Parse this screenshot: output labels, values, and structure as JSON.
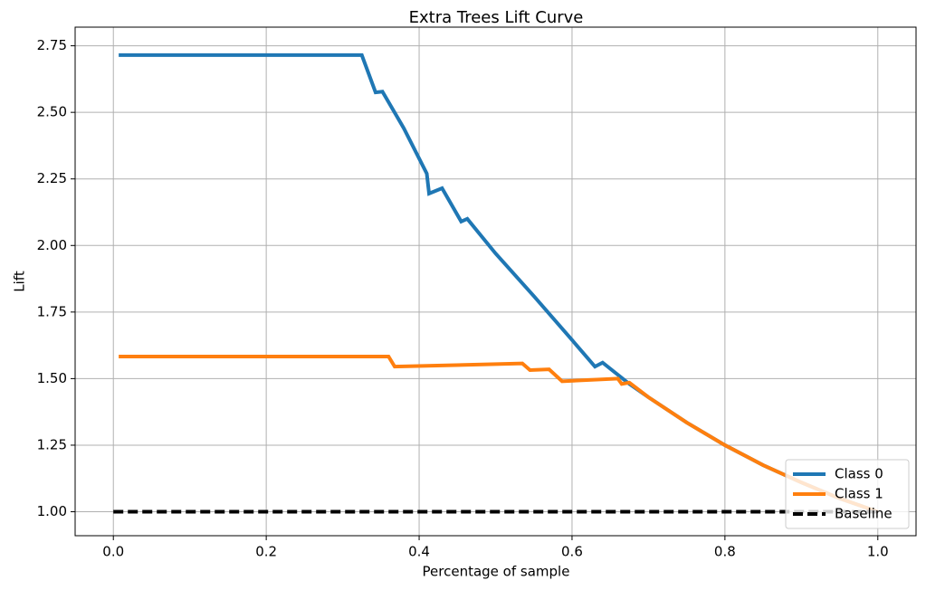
{
  "chart_data": {
    "type": "line",
    "title": "Extra Trees Lift Curve",
    "x_label": "Percentage of sample",
    "y_label": "Lift",
    "xlim": [
      -0.05,
      1.05
    ],
    "ylim": [
      0.91,
      2.82
    ],
    "xticks": [
      {
        "value": 0,
        "label": "0.0"
      },
      0.2,
      0.4,
      0.6,
      0.8,
      {
        "value": 1,
        "label": "1.0"
      }
    ],
    "yticks": [
      {
        "value": 1,
        "label": "1.00"
      },
      1.25,
      {
        "value": 1.5,
        "label": "1.50"
      },
      1.75,
      {
        "value": 2,
        "label": "2.00"
      },
      2.25,
      {
        "value": 2.5,
        "label": "2.50"
      },
      2.75
    ],
    "grid": true,
    "legend": "lower right",
    "series": [
      {
        "name": "Class 0",
        "color": "#1f77b4",
        "dash": "solid",
        "x": [
          0.007,
          0.325,
          0.343,
          0.352,
          0.38,
          0.41,
          0.413,
          0.43,
          0.455,
          0.463,
          0.5,
          0.55,
          0.6,
          0.63,
          0.64,
          0.675,
          0.7,
          0.75,
          0.8,
          0.85,
          0.9,
          0.95,
          1.0
        ],
        "values": [
          2.715,
          2.715,
          2.575,
          2.578,
          2.44,
          2.27,
          2.195,
          2.215,
          2.09,
          2.1,
          1.97,
          1.81,
          1.645,
          1.545,
          1.56,
          1.48,
          1.43,
          1.335,
          1.25,
          1.175,
          1.11,
          1.05,
          1.0
        ]
      },
      {
        "name": "Class 1",
        "color": "#ff7f0e",
        "dash": "solid",
        "x": [
          0.007,
          0.36,
          0.368,
          0.535,
          0.545,
          0.57,
          0.587,
          0.66,
          0.665,
          0.675,
          0.7,
          0.75,
          0.8,
          0.85,
          0.9,
          0.95,
          1.0
        ],
        "values": [
          1.583,
          1.583,
          1.545,
          1.557,
          1.532,
          1.535,
          1.49,
          1.5,
          1.48,
          1.485,
          1.43,
          1.335,
          1.25,
          1.175,
          1.11,
          1.05,
          1.0
        ]
      },
      {
        "name": "Baseline",
        "color": "#000000",
        "dash": "dashed",
        "x": [
          0,
          1
        ],
        "values": [
          1,
          1
        ]
      }
    ]
  }
}
